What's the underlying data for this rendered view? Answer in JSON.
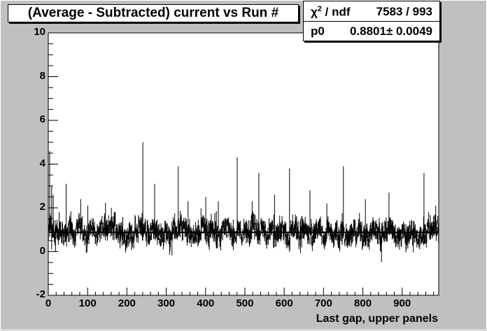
{
  "chart_data": {
    "type": "scatter",
    "title": "(Average - Subtracted) current vs Run #",
    "xlabel": "Last gap, upper panels",
    "ylabel": "",
    "xlim": [
      0,
      993
    ],
    "ylim": [
      -2,
      10
    ],
    "x_ticks": [
      "0",
      "100",
      "200",
      "300",
      "400",
      "500",
      "600",
      "700",
      "800",
      "900"
    ],
    "y_ticks": [
      "-2",
      "0",
      "2",
      "4",
      "6",
      "8",
      "10"
    ],
    "grid": false,
    "legend": "none",
    "fit": {
      "chi2_label": "χ2 / ndf",
      "chi2_value": "7583 / 993",
      "param_name": "p0",
      "param_value": "0.8801",
      "param_error": "0.0049",
      "value": 0.8801
    },
    "series": [
      {
        "marker": "vertical error bar",
        "n_points": 993,
        "baseline": 0.88,
        "spread": 0.55,
        "spikes": [
          {
            "x": 3,
            "y": 4.6
          },
          {
            "x": 8,
            "y": 3.0
          },
          {
            "x": 12,
            "y": 2.6
          },
          {
            "x": 27,
            "y": 1.8
          },
          {
            "x": 45,
            "y": 3.1
          },
          {
            "x": 82,
            "y": 2.4
          },
          {
            "x": 100,
            "y": 2.1
          },
          {
            "x": 160,
            "y": 2.0
          },
          {
            "x": 240,
            "y": 5.0
          },
          {
            "x": 270,
            "y": 3.1
          },
          {
            "x": 330,
            "y": 3.9
          },
          {
            "x": 355,
            "y": 2.3
          },
          {
            "x": 400,
            "y": 2.5
          },
          {
            "x": 432,
            "y": 2.3
          },
          {
            "x": 480,
            "y": 4.3
          },
          {
            "x": 518,
            "y": 2.3
          },
          {
            "x": 535,
            "y": 3.6
          },
          {
            "x": 575,
            "y": 2.6
          },
          {
            "x": 613,
            "y": 3.8
          },
          {
            "x": 665,
            "y": 2.8
          },
          {
            "x": 708,
            "y": 2.2
          },
          {
            "x": 750,
            "y": 3.9
          },
          {
            "x": 806,
            "y": 2.4
          },
          {
            "x": 866,
            "y": 2.7
          },
          {
            "x": 955,
            "y": 3.6
          },
          {
            "x": 985,
            "y": 2.1
          }
        ],
        "dips": [
          {
            "x": 8,
            "y": 0.1
          },
          {
            "x": 18,
            "y": 0.0
          },
          {
            "x": 310,
            "y": 0.2
          },
          {
            "x": 430,
            "y": 0.15
          },
          {
            "x": 700,
            "y": 0.3
          }
        ]
      }
    ]
  }
}
